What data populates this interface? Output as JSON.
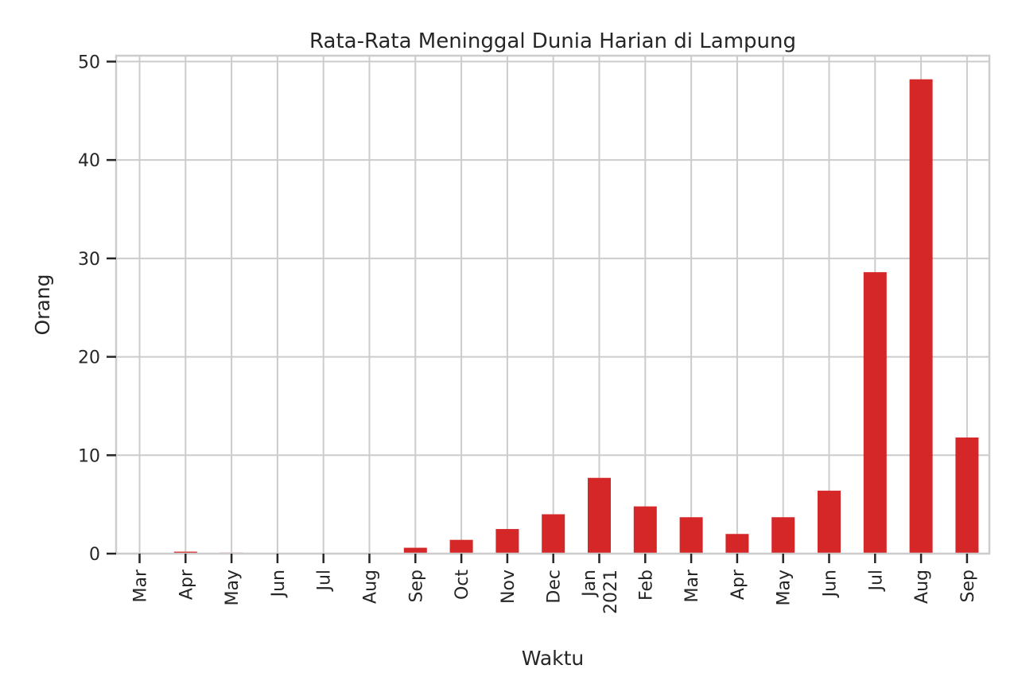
{
  "chart_data": {
    "type": "bar",
    "title": "Rata-Rata Meninggal Dunia Harian di Lampung",
    "xlabel": "Waktu",
    "ylabel": "Orang",
    "categories": [
      [
        "Mar"
      ],
      [
        "Apr"
      ],
      [
        "May"
      ],
      [
        "Jun"
      ],
      [
        "Jul"
      ],
      [
        "Aug"
      ],
      [
        "Sep"
      ],
      [
        "Oct"
      ],
      [
        "Nov"
      ],
      [
        "Dec"
      ],
      [
        "Jan",
        "2021"
      ],
      [
        "Feb"
      ],
      [
        "Mar"
      ],
      [
        "Apr"
      ],
      [
        "May"
      ],
      [
        "Jun"
      ],
      [
        "Jul"
      ],
      [
        "Aug"
      ],
      [
        "Sep"
      ]
    ],
    "values": [
      0.0,
      0.2,
      0.1,
      0.0,
      0.0,
      0.0,
      0.6,
      1.4,
      2.5,
      4.0,
      7.7,
      4.8,
      3.7,
      2.0,
      3.7,
      6.4,
      28.6,
      48.2,
      11.8
    ],
    "ylim": [
      0,
      50.6
    ],
    "yticks": [
      0,
      10,
      20,
      30,
      40,
      50
    ],
    "grid": true,
    "colors": {
      "bar": "#d62728",
      "grid": "#cccccc",
      "text": "#262626"
    }
  }
}
